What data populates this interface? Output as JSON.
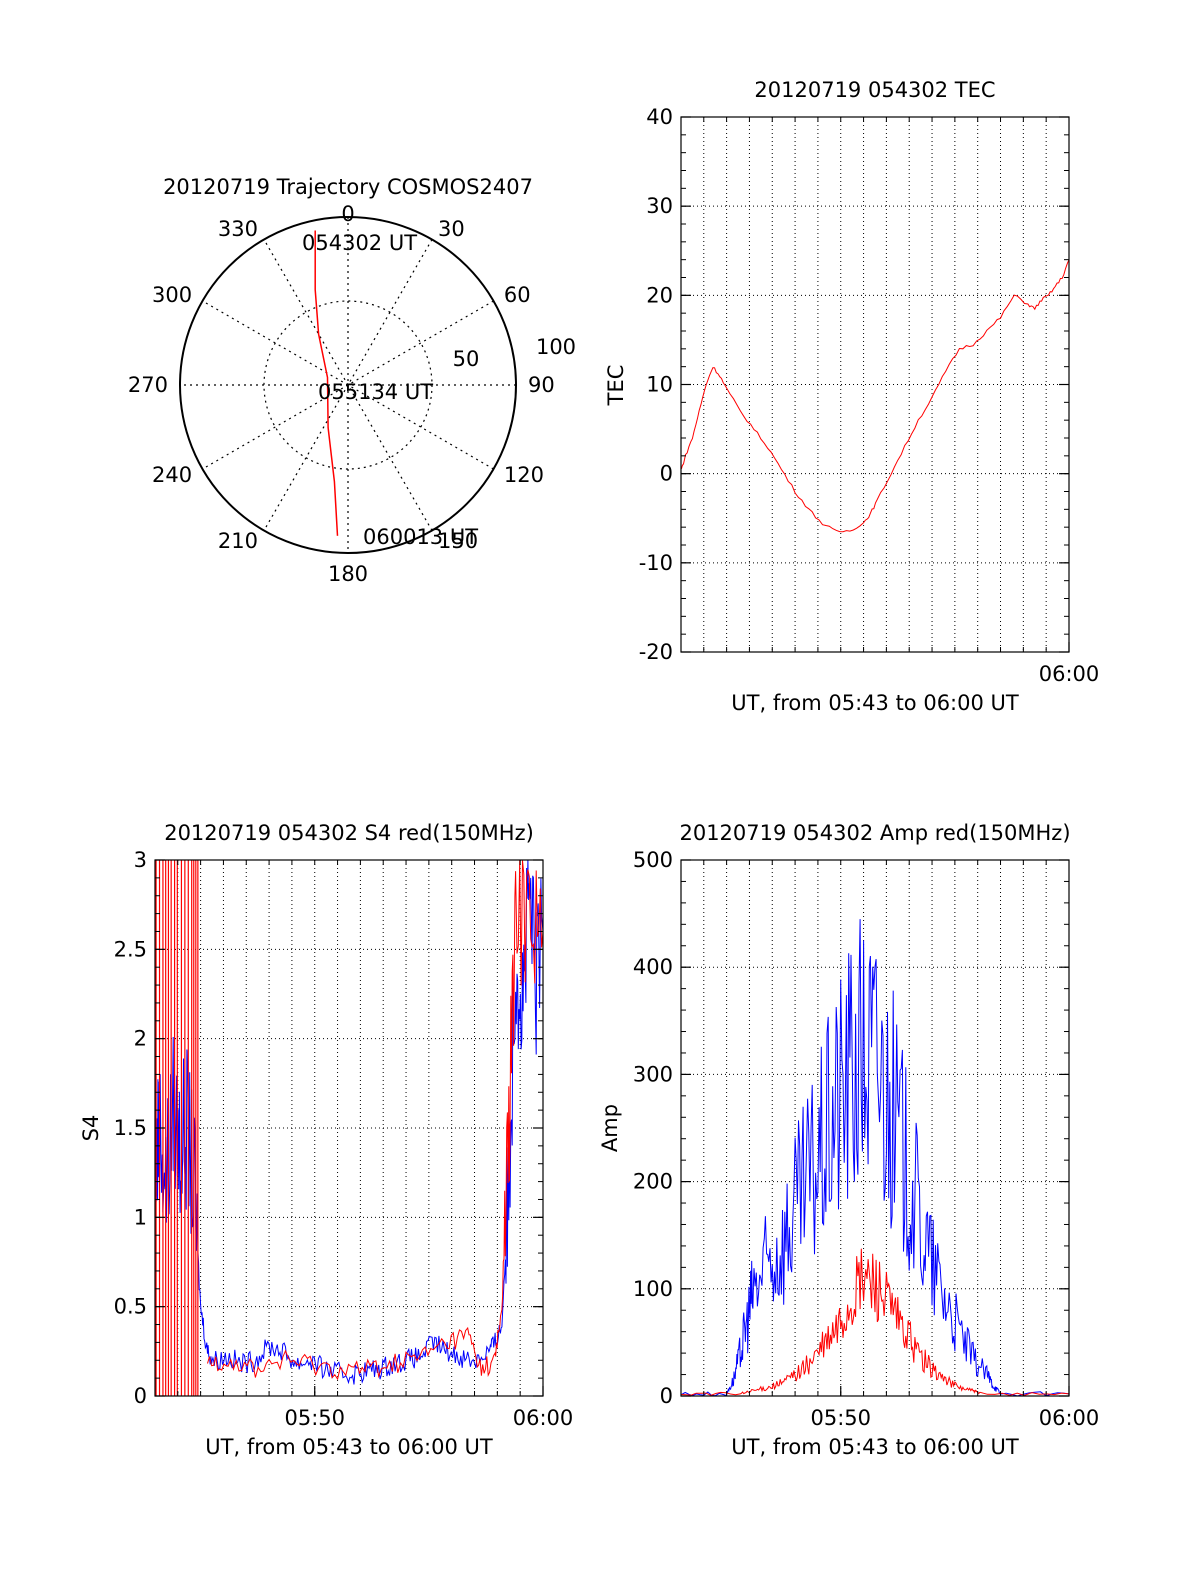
{
  "colors": {
    "red": "#ff0000",
    "blue": "#0000ff",
    "axis": "#000000",
    "grid": "#000000"
  },
  "chart_data": [
    {
      "id": "trajectory",
      "type": "polar",
      "title": "20120719 Trajectory COSMOS2407",
      "azimuth_labels": [
        "0",
        "30",
        "60",
        "90",
        "120",
        "150",
        "180",
        "210",
        "240",
        "270",
        "300",
        "330"
      ],
      "ring_labels": [
        "50",
        "100"
      ],
      "annotations": [
        "054302 UT",
        "055134 UT",
        "060013 UT"
      ],
      "track": [
        {
          "az": 348,
          "r": 94
        },
        {
          "az": 341,
          "r": 60
        },
        {
          "az": 330,
          "r": 35
        },
        {
          "az": 290,
          "r": 13
        },
        {
          "az": 205,
          "r": 28
        },
        {
          "az": 188,
          "r": 58
        },
        {
          "az": 184,
          "r": 90
        }
      ]
    },
    {
      "id": "tec",
      "type": "line",
      "title": "20120719 054302 TEC",
      "xlabel": "UT, from 05:43 to 06:00 UT",
      "ylabel": "TEC",
      "xtick_labels": [
        "06:00"
      ],
      "ytick_labels": [
        "-20",
        "-10",
        "0",
        "10",
        "20",
        "30",
        "40"
      ],
      "xlim": [
        5.7167,
        6.0
      ],
      "ylim": [
        -20,
        40
      ],
      "grid": true,
      "series": [
        {
          "color": "red",
          "x": [
            5.717,
            5.72,
            5.725,
            5.73,
            5.735,
            5.74,
            5.745,
            5.75,
            5.76,
            5.77,
            5.78,
            5.79,
            5.8,
            5.81,
            5.82,
            5.83,
            5.84,
            5.85,
            5.855,
            5.86,
            5.87,
            5.88,
            5.89,
            5.9,
            5.91,
            5.92,
            5.93,
            5.94,
            5.95,
            5.96,
            5.97,
            5.975,
            5.98,
            5.985,
            5.99,
            5.995,
            6.0
          ],
          "y": [
            0.5,
            2,
            4,
            7,
            10,
            12,
            11,
            9.5,
            7,
            5,
            3,
            0.5,
            -2,
            -4,
            -5.6,
            -6.5,
            -6.4,
            -5.5,
            -4.5,
            -3,
            0,
            3,
            6,
            8.5,
            11.5,
            14,
            14.5,
            16,
            17.5,
            20,
            19,
            18.5,
            19.5,
            20,
            21,
            22,
            24
          ]
        }
      ]
    },
    {
      "id": "s4",
      "type": "line",
      "title": "20120719 054302 S4 red(150MHz)",
      "xlabel": "UT, from 05:43 to 06:00 UT",
      "ylabel": "S4",
      "xtick_labels": [
        "05:50",
        "06:00"
      ],
      "ytick_labels": [
        "0",
        "0.5",
        "1",
        "1.5",
        "2",
        "2.5",
        "3"
      ],
      "xlim": [
        5.7167,
        6.0
      ],
      "ylim": [
        0,
        3
      ],
      "grid": true,
      "series": [
        {
          "color": "blue",
          "x": [
            5.717,
            5.72,
            5.725,
            5.73,
            5.735,
            5.74,
            5.745,
            5.75,
            5.755,
            5.76,
            5.77,
            5.78,
            5.79,
            5.8,
            5.81,
            5.82,
            5.83,
            5.84,
            5.85,
            5.86,
            5.87,
            5.88,
            5.89,
            5.9,
            5.91,
            5.92,
            5.93,
            5.94,
            5.95,
            5.96,
            5.965,
            5.97,
            5.975,
            5.98,
            5.985,
            5.99,
            5.995,
            6.0
          ],
          "y": [
            1.3,
            1.5,
            1.2,
            1.6,
            1.4,
            1.5,
            1.2,
            0.5,
            0.25,
            0.2,
            0.22,
            0.18,
            0.2,
            0.28,
            0.25,
            0.18,
            0.2,
            0.15,
            0.13,
            0.12,
            0.14,
            0.15,
            0.18,
            0.2,
            0.22,
            0.3,
            0.25,
            0.22,
            0.2,
            0.25,
            0.3,
            0.4,
            1.2,
            2.5,
            2.2,
            2.8,
            2.3,
            2.6
          ]
        },
        {
          "color": "red",
          "x": [
            5.755,
            5.77,
            5.79,
            5.81,
            5.83,
            5.85,
            5.87,
            5.89,
            5.91,
            5.93,
            5.945,
            5.955,
            5.965,
            5.97,
            5.975,
            5.98,
            5.99,
            6.0
          ],
          "y": [
            0.2,
            0.2,
            0.15,
            0.2,
            0.18,
            0.15,
            0.15,
            0.18,
            0.22,
            0.3,
            0.35,
            0.15,
            0.2,
            0.5,
            1.5,
            2.6,
            2.8,
            2.6
          ]
        }
      ]
    },
    {
      "id": "amp",
      "type": "line",
      "title": "20120719 054302 Amp red(150MHz)",
      "xlabel": "UT, from 05:43 to 06:00 UT",
      "ylabel": "Amp",
      "xtick_labels": [
        "05:50",
        "06:00"
      ],
      "ytick_labels": [
        "0",
        "100",
        "200",
        "300",
        "400",
        "500"
      ],
      "xlim": [
        5.7167,
        6.0
      ],
      "ylim": [
        0,
        500
      ],
      "grid": true,
      "series": [
        {
          "color": "blue",
          "x": [
            5.717,
            5.75,
            5.755,
            5.76,
            5.765,
            5.77,
            5.78,
            5.79,
            5.8,
            5.81,
            5.82,
            5.83,
            5.84,
            5.85,
            5.86,
            5.87,
            5.88,
            5.89,
            5.9,
            5.91,
            5.92,
            5.93,
            5.94,
            5.945,
            5.95,
            6.0
          ],
          "y": [
            2,
            2,
            15,
            40,
            70,
            100,
            120,
            140,
            170,
            200,
            230,
            270,
            300,
            320,
            310,
            270,
            220,
            170,
            120,
            90,
            60,
            35,
            20,
            10,
            2,
            2
          ]
        },
        {
          "color": "red",
          "x": [
            5.717,
            5.76,
            5.77,
            5.78,
            5.79,
            5.8,
            5.81,
            5.82,
            5.83,
            5.84,
            5.85,
            5.86,
            5.87,
            5.88,
            5.89,
            5.9,
            5.91,
            5.92,
            5.93,
            5.935,
            6.0
          ],
          "y": [
            2,
            2,
            5,
            8,
            12,
            20,
            30,
            45,
            60,
            85,
            110,
            105,
            80,
            60,
            40,
            25,
            15,
            8,
            5,
            2,
            2
          ]
        }
      ]
    }
  ]
}
